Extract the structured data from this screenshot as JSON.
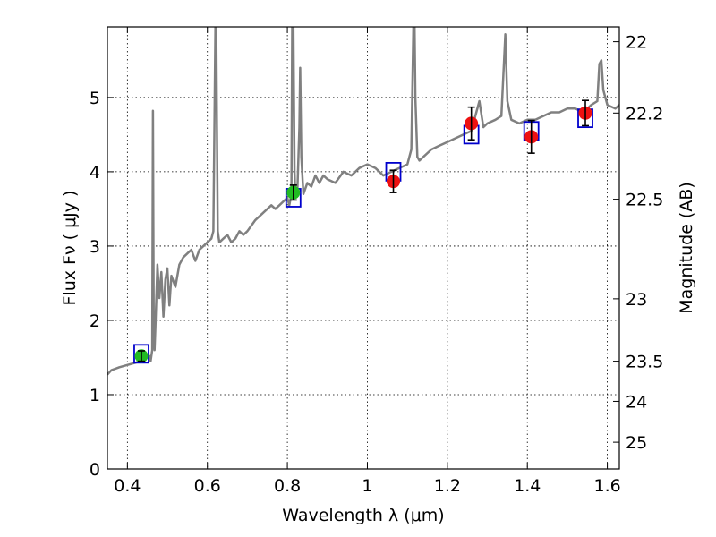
{
  "chart_data": {
    "type": "line",
    "xlabel": "Wavelength  λ (μm)",
    "ylabel": "Flux  Fν  ( μJy )",
    "y2label": "Magnitude (AB)",
    "xlim": [
      0.35,
      1.63
    ],
    "ylim": [
      0,
      5.95
    ],
    "grid": true,
    "x_ticks": [
      0.4,
      0.6,
      0.8,
      1.0,
      1.2,
      1.4,
      1.6
    ],
    "x_tick_labels": [
      "0.4",
      "0.6",
      "0.8",
      "1",
      "1.2",
      "1.4",
      "1.6"
    ],
    "y_ticks": [
      0,
      1,
      2,
      3,
      4,
      5
    ],
    "y_tick_labels": [
      "0",
      "1",
      "2",
      "3",
      "4",
      "5"
    ],
    "y2_ticks": [
      {
        "label": "22",
        "flux": 5.75
      },
      {
        "label": "22.2",
        "flux": 4.79
      },
      {
        "label": "22.5",
        "flux": 3.63
      },
      {
        "label": "23",
        "flux": 2.29
      },
      {
        "label": "23.5",
        "flux": 1.45
      },
      {
        "label": "24",
        "flux": 0.91
      },
      {
        "label": "25",
        "flux": 0.36
      }
    ],
    "colors": {
      "spectrum": "#808080",
      "model_box": "#0000cc",
      "green_point": "#22bb22",
      "red_point": "#ee1111",
      "errorbar": "#000000"
    },
    "spectrum": {
      "x": [
        0.35,
        0.36,
        0.38,
        0.4,
        0.42,
        0.44,
        0.455,
        0.458,
        0.462,
        0.464,
        0.466,
        0.468,
        0.47,
        0.475,
        0.48,
        0.485,
        0.49,
        0.495,
        0.5,
        0.505,
        0.51,
        0.52,
        0.53,
        0.54,
        0.55,
        0.56,
        0.57,
        0.58,
        0.59,
        0.6,
        0.61,
        0.615,
        0.62,
        0.622,
        0.624,
        0.626,
        0.63,
        0.64,
        0.65,
        0.66,
        0.67,
        0.68,
        0.69,
        0.7,
        0.72,
        0.74,
        0.76,
        0.77,
        0.78,
        0.79,
        0.8,
        0.805,
        0.81,
        0.812,
        0.815,
        0.818,
        0.82,
        0.825,
        0.83,
        0.832,
        0.835,
        0.84,
        0.85,
        0.86,
        0.87,
        0.88,
        0.89,
        0.9,
        0.92,
        0.94,
        0.96,
        0.98,
        1.0,
        1.02,
        1.04,
        1.06,
        1.08,
        1.1,
        1.11,
        1.115,
        1.118,
        1.12,
        1.125,
        1.13,
        1.14,
        1.16,
        1.18,
        1.2,
        1.22,
        1.24,
        1.26,
        1.27,
        1.28,
        1.29,
        1.3,
        1.32,
        1.335,
        1.34,
        1.345,
        1.35,
        1.36,
        1.38,
        1.4,
        1.42,
        1.44,
        1.46,
        1.48,
        1.5,
        1.52,
        1.54,
        1.56,
        1.575,
        1.58,
        1.585,
        1.59,
        1.6,
        1.62,
        1.63
      ],
      "y": [
        1.27,
        1.33,
        1.37,
        1.4,
        1.43,
        1.47,
        1.52,
        1.45,
        1.6,
        4.82,
        1.8,
        1.6,
        1.9,
        2.75,
        2.3,
        2.65,
        2.05,
        2.55,
        2.7,
        2.2,
        2.6,
        2.45,
        2.75,
        2.85,
        2.9,
        2.95,
        2.8,
        2.95,
        3.0,
        3.05,
        3.1,
        3.2,
        5.95,
        5.95,
        4.6,
        3.2,
        3.05,
        3.1,
        3.15,
        3.05,
        3.1,
        3.2,
        3.15,
        3.2,
        3.35,
        3.45,
        3.55,
        3.5,
        3.55,
        3.6,
        3.65,
        3.55,
        3.7,
        5.95,
        5.95,
        4.0,
        3.65,
        3.75,
        4.6,
        5.4,
        4.2,
        3.7,
        3.85,
        3.8,
        3.95,
        3.85,
        3.95,
        3.9,
        3.85,
        4.0,
        3.95,
        4.05,
        4.1,
        4.05,
        3.95,
        4.0,
        4.05,
        4.1,
        4.3,
        5.95,
        5.95,
        5.0,
        4.2,
        4.15,
        4.2,
        4.3,
        4.35,
        4.4,
        4.45,
        4.5,
        4.55,
        4.75,
        4.95,
        4.6,
        4.65,
        4.7,
        4.75,
        5.3,
        5.85,
        4.95,
        4.7,
        4.65,
        4.7,
        4.7,
        4.75,
        4.8,
        4.8,
        4.85,
        4.85,
        4.8,
        4.9,
        4.95,
        5.45,
        5.5,
        5.1,
        4.9,
        4.85,
        4.9
      ]
    },
    "model_boxes": [
      {
        "x": 0.435,
        "y": 1.55
      },
      {
        "x": 0.815,
        "y": 3.65
      },
      {
        "x": 1.065,
        "y": 4.0
      },
      {
        "x": 1.26,
        "y": 4.5
      },
      {
        "x": 1.41,
        "y": 4.55
      },
      {
        "x": 1.545,
        "y": 4.72
      }
    ],
    "points": [
      {
        "x": 0.435,
        "y": 1.52,
        "err": 0.07,
        "color": "green"
      },
      {
        "x": 0.815,
        "y": 3.72,
        "err": 0.1,
        "color": "green"
      },
      {
        "x": 1.065,
        "y": 3.87,
        "err": 0.15,
        "color": "red"
      },
      {
        "x": 1.26,
        "y": 4.65,
        "err": 0.22,
        "color": "red"
      },
      {
        "x": 1.41,
        "y": 4.47,
        "err": 0.22,
        "color": "red"
      },
      {
        "x": 1.545,
        "y": 4.79,
        "err": 0.17,
        "color": "red"
      }
    ]
  }
}
